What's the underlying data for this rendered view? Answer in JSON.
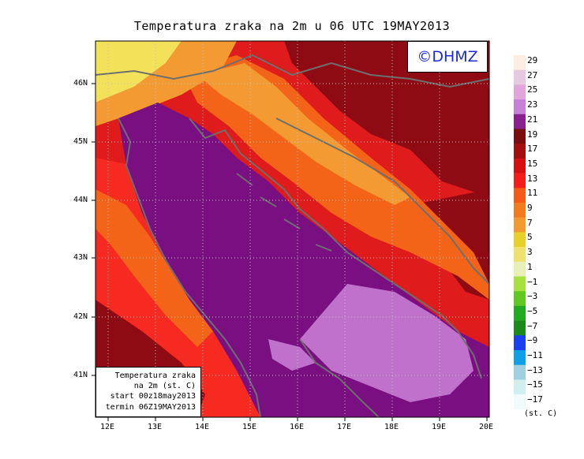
{
  "title": "Temperatura zraka na 2m u 06 UTC 19MAY2013",
  "logo_text": "©DHMZ",
  "info_box": {
    "line1": "Temperatura zraka",
    "line2": "na 2m (st. C)",
    "line3": "start 00z18may2013",
    "line4": "termin 06Z19MAY2013"
  },
  "x_axis_ticks": [
    "12E",
    "13E",
    "14E",
    "15E",
    "16E",
    "17E",
    "18E",
    "19E",
    "20E"
  ],
  "y_axis_ticks": [
    "46N",
    "45N",
    "44N",
    "43N",
    "42N",
    "41N"
  ],
  "legend": {
    "unit": "(st. C)",
    "labels": [
      "29",
      "27",
      "25",
      "23",
      "21",
      "19",
      "17",
      "15",
      "13",
      "11",
      "9",
      "7",
      "5",
      "3",
      "1",
      "−1",
      "−3",
      "−5",
      "−7",
      "−9",
      "−11",
      "−13",
      "−15",
      "−17"
    ],
    "colors": [
      "#fbeee0",
      "#e6c9e0",
      "#e0a6dc",
      "#c87fd6",
      "#8a1f8f",
      "#7a0d0d",
      "#a30f0f",
      "#d61010",
      "#f21e1e",
      "#f55a16",
      "#f27b1f",
      "#f29a30",
      "#e6d02e",
      "#f0e070",
      "#e8f0b8",
      "#a8e040",
      "#60c820",
      "#22aa22",
      "#1a8a1a",
      "#1a40f0",
      "#10a0e8",
      "#a0d0e0",
      "#d0f0f0",
      "#f0fbfb"
    ]
  },
  "map": {
    "field_colors": {
      "sea": "#7a0f82",
      "warm_sea": "#c071cc",
      "hot_land": "#8f0b14",
      "land_red": "#df1b1b",
      "land_bright_red": "#f62a20",
      "land_orange": "#f46418",
      "land_light_orange": "#f39b32",
      "cool_yellow": "#f3e15a",
      "coastline": "#6e6e6e"
    }
  }
}
